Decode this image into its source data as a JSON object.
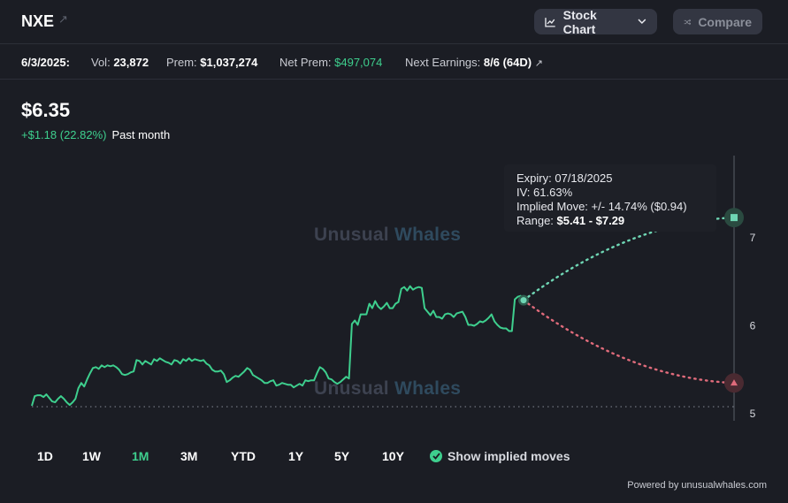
{
  "header": {
    "ticker": "NXE",
    "stock_chart_label": "Stock Chart",
    "compare_label": "Compare",
    "ext_icon": "external-arrow-icon"
  },
  "info": {
    "date": "6/3/2025:",
    "vol_label": "Vol:",
    "vol_value": "23,872",
    "prem_label": "Prem:",
    "prem_value": "$1,037,274",
    "net_prem_label": "Net Prem:",
    "net_prem_value": "$497,074",
    "next_earnings_label": "Next Earnings:",
    "next_earnings_value": "8/6 (64D)"
  },
  "price": {
    "value": "$6.35",
    "change": "+$1.18 (22.82%)",
    "period": "Past month"
  },
  "watermark": {
    "part1": "Unusual",
    "part2": "Whales"
  },
  "tooltip": {
    "expiry_label": "Expiry:",
    "expiry_value": "07/18/2025",
    "iv_label": "IV:",
    "iv_value": "61.63%",
    "move_label": "Implied Move:",
    "move_value": "+/- 14.74% ($0.94)",
    "range_label": "Range:",
    "range_value": "$5.41 - $7.29"
  },
  "ranges": [
    "1D",
    "1W",
    "1M",
    "3M",
    "YTD",
    "1Y",
    "5Y",
    "10Y"
  ],
  "active_range": "1M",
  "show_implied_label": "Show implied moves",
  "powered_by": "Powered by unusualwhales.com",
  "colors": {
    "line": "#3ecf8e",
    "down": "#e06b7b",
    "accent": "#3ecf8e",
    "background": "#1b1d24"
  },
  "chart_data": {
    "type": "line",
    "yticks": [
      5,
      6,
      7
    ],
    "ylim": [
      4.85,
      7.95
    ],
    "baseline": 5.08,
    "current": 6.29,
    "upper": 7.23,
    "lower": 5.35,
    "series": [
      {
        "values": [
          5.09,
          5.2,
          5.21,
          5.21,
          5.19,
          5.22,
          5.18,
          5.14,
          5.13,
          5.17,
          5.2,
          5.17,
          5.13,
          5.1,
          5.13,
          5.17,
          5.29,
          5.35,
          5.31,
          5.39,
          5.46,
          5.52,
          5.53,
          5.51,
          5.55,
          5.53,
          5.55,
          5.54,
          5.55,
          5.53,
          5.5,
          5.45,
          5.44,
          5.45,
          5.47,
          5.48,
          5.61,
          5.6,
          5.56,
          5.6,
          5.58,
          5.56,
          5.62,
          5.6,
          5.63,
          5.61,
          5.59,
          5.58,
          5.56,
          5.61,
          5.6,
          5.57,
          5.62,
          5.6,
          5.63,
          5.6,
          5.62,
          5.61,
          5.6,
          5.61,
          5.57,
          5.55,
          5.5,
          5.48,
          5.48,
          5.49,
          5.45,
          5.36,
          5.38,
          5.41,
          5.43,
          5.42,
          5.45,
          5.48,
          5.52,
          5.5,
          5.44,
          5.42,
          5.4,
          5.38,
          5.35,
          5.35,
          5.37,
          5.38,
          5.32,
          5.33,
          5.35,
          5.34,
          5.33,
          5.33,
          5.3,
          5.32,
          5.34,
          5.32,
          5.38,
          5.37,
          5.38,
          5.38,
          5.46,
          5.53,
          5.51,
          5.47,
          5.4,
          5.39,
          5.36,
          5.34,
          5.36,
          5.39,
          5.42,
          5.4,
          6.02,
          6.06,
          6.01,
          6.13,
          6.13,
          6.13,
          6.25,
          6.2,
          6.28,
          6.22,
          6.19,
          6.22,
          6.26,
          6.2,
          6.2,
          6.25,
          6.27,
          6.42,
          6.44,
          6.4,
          6.45,
          6.41,
          6.43,
          6.44,
          6.43,
          6.2,
          6.16,
          6.12,
          6.17,
          6.1,
          6.1,
          6.08,
          6.13,
          6.14,
          6.13,
          6.1,
          6.14,
          6.15,
          6.16,
          6.1,
          6.01,
          6.01,
          6.0,
          6.02,
          6.05,
          6.04,
          6.06,
          6.09,
          6.13,
          6.05,
          6.01,
          5.98,
          5.97,
          5.97,
          5.94,
          5.94,
          6.3,
          6.33,
          6.34,
          6.29
        ]
      }
    ]
  }
}
